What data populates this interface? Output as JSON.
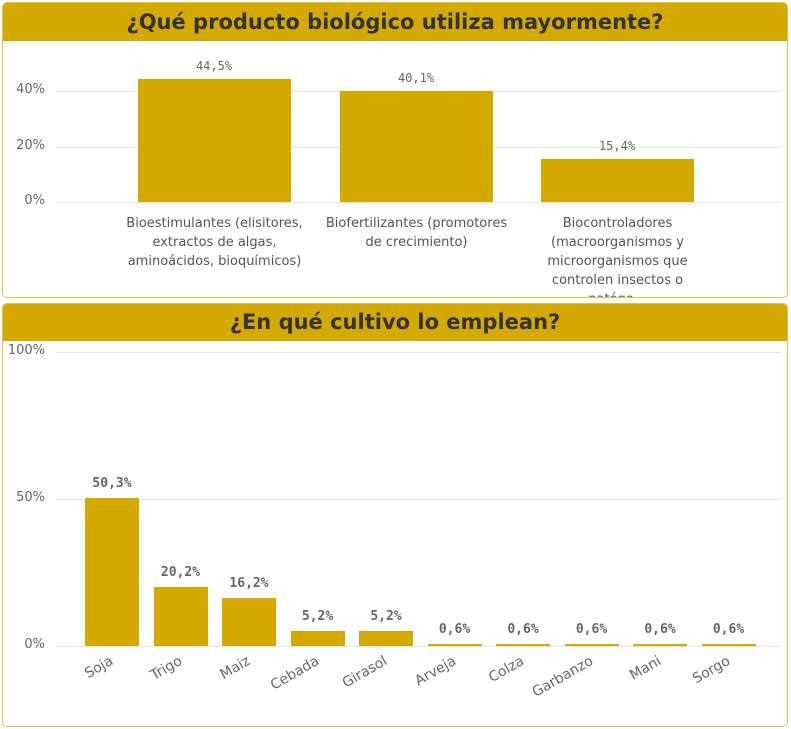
{
  "chart_data": [
    {
      "type": "bar",
      "title": "¿Qué producto biológico utiliza mayormente?",
      "categories": [
        "Bioestimulantes (elisitores, extractos de algas, aminoácidos, bioquímicos)",
        "Biofertilizantes (promotores de crecimiento)",
        "Biocontroladores (macroorganismos y microorganismos que controlen insectos o patóge…"
      ],
      "values": [
        44.5,
        40.1,
        15.4
      ],
      "data_labels": [
        "44,5%",
        "40,1%",
        "15,4%"
      ],
      "yticks": [
        "0%",
        "20%",
        "40%"
      ],
      "ylim": [
        0,
        48
      ],
      "grid": true,
      "color": "#d4a900"
    },
    {
      "type": "bar",
      "title": "¿En qué cultivo lo emplean?",
      "categories": [
        "Soja",
        "Trigo",
        "Maiz",
        "Cebada",
        "Girasol",
        "Arveja",
        "Colza",
        "Garbanzo",
        "Mani",
        "Sorgo"
      ],
      "values": [
        50.3,
        20.2,
        16.2,
        5.2,
        5.2,
        0.6,
        0.6,
        0.6,
        0.6,
        0.6
      ],
      "data_labels": [
        "50,3%",
        "20,2%",
        "16,2%",
        "5,2%",
        "5,2%",
        "0,6%",
        "0,6%",
        "0,6%",
        "0,6%",
        "0,6%"
      ],
      "yticks": [
        "0%",
        "50%",
        "100%"
      ],
      "ylim": [
        0,
        100
      ],
      "grid": true,
      "color": "#d4a900"
    }
  ]
}
